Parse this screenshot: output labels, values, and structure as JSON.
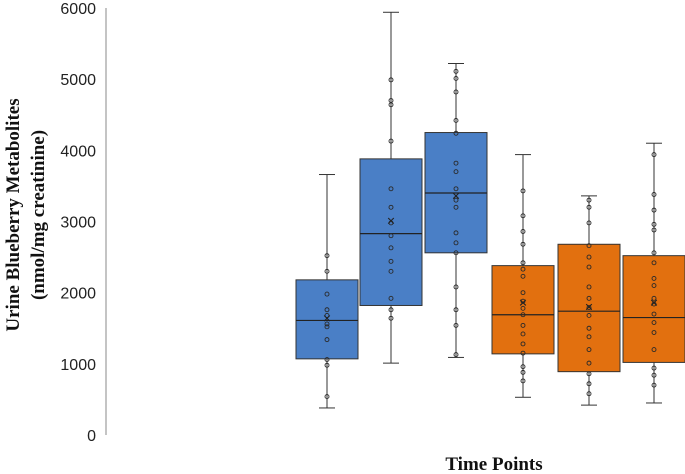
{
  "chart_data": {
    "type": "box",
    "xlabel": "Time Points",
    "ylabel_line1": "Urine Blueberry Metabolites",
    "ylabel_line2": "(nmol/mg creatinine)",
    "ylim": [
      0,
      6000
    ],
    "yticks": [
      0,
      1000,
      2000,
      3000,
      4000,
      5000,
      6000
    ],
    "grid": false,
    "legend": "none",
    "colors": {
      "blue": "#4a7fc6",
      "orange": "#e2700f",
      "outline": "#333333"
    },
    "boxes": [
      {
        "color": "blue",
        "min": 380,
        "q1": 1070,
        "median": 1610,
        "q3": 2180,
        "max": 3660,
        "mean": 1640,
        "points": [
          540,
          980,
          1060,
          1340,
          1520,
          1560,
          1680,
          1760,
          1980,
          2300,
          2520
        ]
      },
      {
        "color": "blue",
        "min": 1010,
        "q1": 1820,
        "median": 2830,
        "q3": 3880,
        "max": 5940,
        "mean": 3010,
        "points": [
          1640,
          1760,
          1920,
          2300,
          2440,
          2630,
          2800,
          2980,
          3200,
          3460,
          4130,
          4640,
          4700,
          4990
        ]
      },
      {
        "color": "blue",
        "min": 1090,
        "q1": 2560,
        "median": 3400,
        "q3": 4250,
        "max": 5220,
        "mean": 3360,
        "points": [
          1130,
          1540,
          1760,
          2080,
          2560,
          2700,
          2840,
          3200,
          3300,
          3460,
          3700,
          3820,
          4240,
          4420,
          4820,
          5010,
          5110
        ]
      },
      {
        "color": "orange",
        "min": 530,
        "q1": 1140,
        "median": 1690,
        "q3": 2380,
        "max": 3940,
        "mean": 1860,
        "points": [
          760,
          880,
          960,
          1150,
          1280,
          1420,
          1540,
          1690,
          1780,
          1880,
          2000,
          2230,
          2330,
          2420,
          2680,
          2860,
          3080,
          3430
        ]
      },
      {
        "color": "orange",
        "min": 420,
        "q1": 890,
        "median": 1740,
        "q3": 2680,
        "max": 3360,
        "mean": 1800,
        "points": [
          580,
          720,
          860,
          1010,
          1200,
          1380,
          1500,
          1680,
          1790,
          1920,
          2080,
          2360,
          2500,
          2660,
          2980,
          3200,
          3300
        ]
      },
      {
        "color": "orange",
        "min": 450,
        "q1": 1020,
        "median": 1650,
        "q3": 2520,
        "max": 4100,
        "mean": 1860,
        "points": [
          700,
          840,
          940,
          1200,
          1440,
          1580,
          1700,
          1840,
          1920,
          2100,
          2200,
          2420,
          2560,
          2880,
          2960,
          3160,
          3380,
          3940
        ]
      }
    ]
  }
}
